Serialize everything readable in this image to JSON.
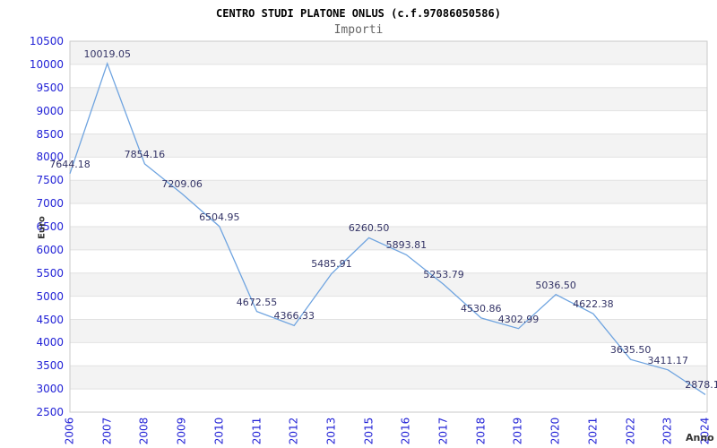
{
  "header": {
    "title": "CENTRO STUDI PLATONE ONLUS (c.f.97086050586)",
    "subtitle": "Importi"
  },
  "chart_data": {
    "type": "line",
    "title": "CENTRO STUDI PLATONE ONLUS (c.f.97086050586)",
    "subtitle": "Importi",
    "xlabel": "Anno",
    "ylabel": "Euro",
    "categories": [
      "2006",
      "2007",
      "2008",
      "2009",
      "2010",
      "2011",
      "2012",
      "2013",
      "2015",
      "2016",
      "2017",
      "2018",
      "2019",
      "2020",
      "2021",
      "2022",
      "2023",
      "2024"
    ],
    "values": [
      7644.18,
      10019.05,
      7854.16,
      7209.06,
      6504.95,
      4672.55,
      4366.33,
      5485.91,
      6260.5,
      5893.81,
      5253.79,
      4530.86,
      4302.99,
      5036.5,
      4622.38,
      3635.5,
      3411.17,
      2878.17
    ],
    "point_labels": [
      "7644.18",
      "10019.05",
      "7854.16",
      "7209.06",
      "6504.95",
      "4672.55",
      "4366.33",
      "5485.91",
      "6260.50",
      "5893.81",
      "5253.79",
      "4530.86",
      "4302.99",
      "5036.50",
      "4622.38",
      "3635.50",
      "3411.17",
      "2878.17"
    ],
    "ylim": [
      2500,
      10500
    ],
    "ytick_step": 500,
    "grid": true,
    "legend": "none",
    "banded_background": true,
    "colors": {
      "line": "#6fa4e0",
      "tick_label": "#2222d6",
      "point_label": "#333366",
      "band_gray": "#f3f3f3",
      "band_white": "#ffffff",
      "grid_line": "#e2e2e2",
      "plot_border": "#c9c9c9",
      "title": "#000000",
      "subtitle": "#666666",
      "axis_title": "#333333"
    }
  }
}
